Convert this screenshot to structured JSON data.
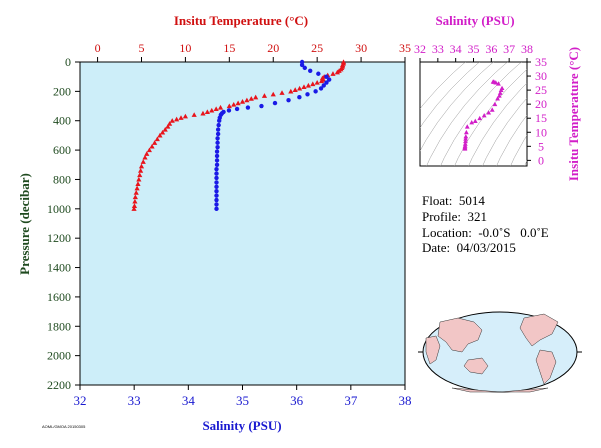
{
  "chart_data": {
    "type": "scatter",
    "main_profile": {
      "top_axis_label": "Insitu Temperature (°C)",
      "bottom_axis_label": "Salinity (PSU)",
      "left_axis_label": "Pressure (decibar)",
      "temperature_ticks": [
        "0",
        "5",
        "10",
        "15",
        "20",
        "25",
        "30",
        "35"
      ],
      "salinity_ticks": [
        "32",
        "33",
        "34",
        "35",
        "36",
        "37",
        "38"
      ],
      "pressure_ticks": [
        "0",
        "200",
        "400",
        "600",
        "800",
        "1000",
        "1200",
        "1400",
        "1600",
        "1800",
        "2000",
        "2200"
      ],
      "temperature_range": [
        -2,
        35
      ],
      "salinity_range": [
        32,
        38
      ],
      "pressure_range": [
        0,
        2200
      ],
      "grid": false,
      "series": [
        {
          "name": "Insitu Temperature (°C)",
          "color": "#e8141c",
          "marker": "triangle",
          "points": [
            [
              28.0,
              0
            ],
            [
              28.0,
              10
            ],
            [
              27.9,
              20
            ],
            [
              27.9,
              30
            ],
            [
              27.8,
              40
            ],
            [
              27.7,
              50
            ],
            [
              27.5,
              60
            ],
            [
              27.3,
              70
            ],
            [
              26.8,
              80
            ],
            [
              26.2,
              90
            ],
            [
              25.8,
              100
            ],
            [
              25.6,
              110
            ],
            [
              25.7,
              120
            ],
            [
              25.5,
              130
            ],
            [
              25.0,
              140
            ],
            [
              24.5,
              150
            ],
            [
              24.0,
              160
            ],
            [
              23.5,
              170
            ],
            [
              23.0,
              180
            ],
            [
              22.5,
              190
            ],
            [
              22.0,
              200
            ],
            [
              21.0,
              210
            ],
            [
              20.0,
              220
            ],
            [
              19.0,
              230
            ],
            [
              18.0,
              240
            ],
            [
              17.5,
              250
            ],
            [
              17.0,
              260
            ],
            [
              16.5,
              270
            ],
            [
              16.0,
              280
            ],
            [
              15.5,
              290
            ],
            [
              15.0,
              300
            ],
            [
              14.0,
              310
            ],
            [
              13.5,
              320
            ],
            [
              13.0,
              330
            ],
            [
              12.5,
              340
            ],
            [
              12.0,
              350
            ],
            [
              11.0,
              360
            ],
            [
              10.0,
              370
            ],
            [
              9.5,
              380
            ],
            [
              9.0,
              390
            ],
            [
              8.5,
              400
            ],
            [
              8.2,
              420
            ],
            [
              8.0,
              440
            ],
            [
              7.7,
              460
            ],
            [
              7.4,
              480
            ],
            [
              7.1,
              500
            ],
            [
              6.8,
              525
            ],
            [
              6.5,
              550
            ],
            [
              6.2,
              575
            ],
            [
              5.9,
              600
            ],
            [
              5.6,
              625
            ],
            [
              5.4,
              650
            ],
            [
              5.2,
              680
            ],
            [
              5.0,
              710
            ],
            [
              4.9,
              740
            ],
            [
              4.8,
              770
            ],
            [
              4.7,
              800
            ],
            [
              4.6,
              830
            ],
            [
              4.5,
              860
            ],
            [
              4.4,
              890
            ],
            [
              4.3,
              920
            ],
            [
              4.25,
              950
            ],
            [
              4.2,
              980
            ],
            [
              4.15,
              1000
            ]
          ]
        },
        {
          "name": "Salinity (PSU)",
          "color": "#1a1ae6",
          "marker": "circle",
          "points": [
            [
              36.1,
              0
            ],
            [
              36.1,
              20
            ],
            [
              36.15,
              40
            ],
            [
              36.25,
              60
            ],
            [
              36.4,
              80
            ],
            [
              36.55,
              100
            ],
            [
              36.6,
              120
            ],
            [
              36.55,
              140
            ],
            [
              36.5,
              160
            ],
            [
              36.45,
              180
            ],
            [
              36.35,
              200
            ],
            [
              36.2,
              220
            ],
            [
              36.05,
              240
            ],
            [
              35.85,
              260
            ],
            [
              35.6,
              280
            ],
            [
              35.35,
              300
            ],
            [
              35.1,
              310
            ],
            [
              34.9,
              320
            ],
            [
              34.75,
              330
            ],
            [
              34.65,
              340
            ],
            [
              34.62,
              350
            ],
            [
              34.6,
              360
            ],
            [
              34.58,
              380
            ],
            [
              34.57,
              400
            ],
            [
              34.56,
              430
            ],
            [
              34.55,
              460
            ],
            [
              34.55,
              490
            ],
            [
              34.54,
              520
            ],
            [
              34.54,
              550
            ],
            [
              34.54,
              580
            ],
            [
              34.53,
              610
            ],
            [
              34.53,
              640
            ],
            [
              34.53,
              670
            ],
            [
              34.53,
              700
            ],
            [
              34.52,
              730
            ],
            [
              34.52,
              760
            ],
            [
              34.52,
              790
            ],
            [
              34.52,
              820
            ],
            [
              34.52,
              850
            ],
            [
              34.52,
              880
            ],
            [
              34.52,
              910
            ],
            [
              34.52,
              940
            ],
            [
              34.52,
              970
            ],
            [
              34.52,
              1000
            ]
          ]
        }
      ]
    },
    "ts_diagram": {
      "top_axis_label": "Salinity (PSU)",
      "right_axis_label": "Insitu Temperature (°C)",
      "salinity_ticks": [
        "32",
        "33",
        "34",
        "35",
        "36",
        "37",
        "38"
      ],
      "temperature_ticks": [
        "0",
        "5",
        "10",
        "15",
        "20",
        "25",
        "30",
        "35"
      ],
      "salinity_range": [
        32,
        38
      ],
      "temperature_range": [
        -2,
        35
      ],
      "color": "#d21ec8",
      "marker": "triangle",
      "points": [
        [
          34.52,
          4.15
        ],
        [
          34.52,
          4.4
        ],
        [
          34.52,
          4.8
        ],
        [
          34.53,
          5.2
        ],
        [
          34.54,
          5.9
        ],
        [
          34.55,
          6.8
        ],
        [
          34.56,
          7.7
        ],
        [
          34.57,
          8.5
        ],
        [
          34.6,
          10.0
        ],
        [
          34.65,
          12.0
        ],
        [
          34.9,
          13.5
        ],
        [
          35.1,
          14.0
        ],
        [
          35.35,
          15.0
        ],
        [
          35.6,
          16.0
        ],
        [
          35.85,
          17.0
        ],
        [
          36.05,
          18.0
        ],
        [
          36.2,
          20.0
        ],
        [
          36.35,
          22.0
        ],
        [
          36.45,
          23.0
        ],
        [
          36.5,
          24.0
        ],
        [
          36.55,
          25.0
        ],
        [
          36.6,
          25.7
        ],
        [
          36.4,
          27.3
        ],
        [
          36.25,
          27.7
        ],
        [
          36.15,
          27.9
        ],
        [
          36.1,
          28.0
        ]
      ]
    }
  },
  "float_info": {
    "float": "Float:  5014",
    "profile": "Profile:  321",
    "location": "Location:  -0.0˚S   0.0˚E",
    "date": "Date:  04/03/2015"
  },
  "footer_code": "AOML/GMOA 20150305"
}
